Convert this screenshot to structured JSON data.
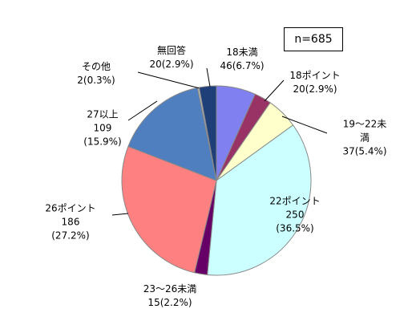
{
  "chart_data": {
    "type": "pie",
    "annotation": "n=685",
    "categories": [
      "18未満",
      "18ポイント",
      "19～22未満",
      "22ポイント",
      "23～26未満",
      "26ポイント",
      "27以上",
      "その他",
      "無回答"
    ],
    "values": [
      46,
      20,
      37,
      250,
      15,
      186,
      109,
      2,
      20
    ],
    "value_labels": [
      "46(6.7%)",
      "20(2.9%)",
      "37(5.4%)",
      "250\n(36.5%)",
      "15(2.2%)",
      "186\n(27.2%)",
      "109\n(15.9%)",
      "2(0.3%)",
      "20(2.9%)"
    ],
    "colors": [
      "#8080f0",
      "#993366",
      "#ffffcc",
      "#ccffff",
      "#660066",
      "#ff8080",
      "#4f7fbf",
      "#c0c0c0",
      "#1f3f78"
    ]
  }
}
